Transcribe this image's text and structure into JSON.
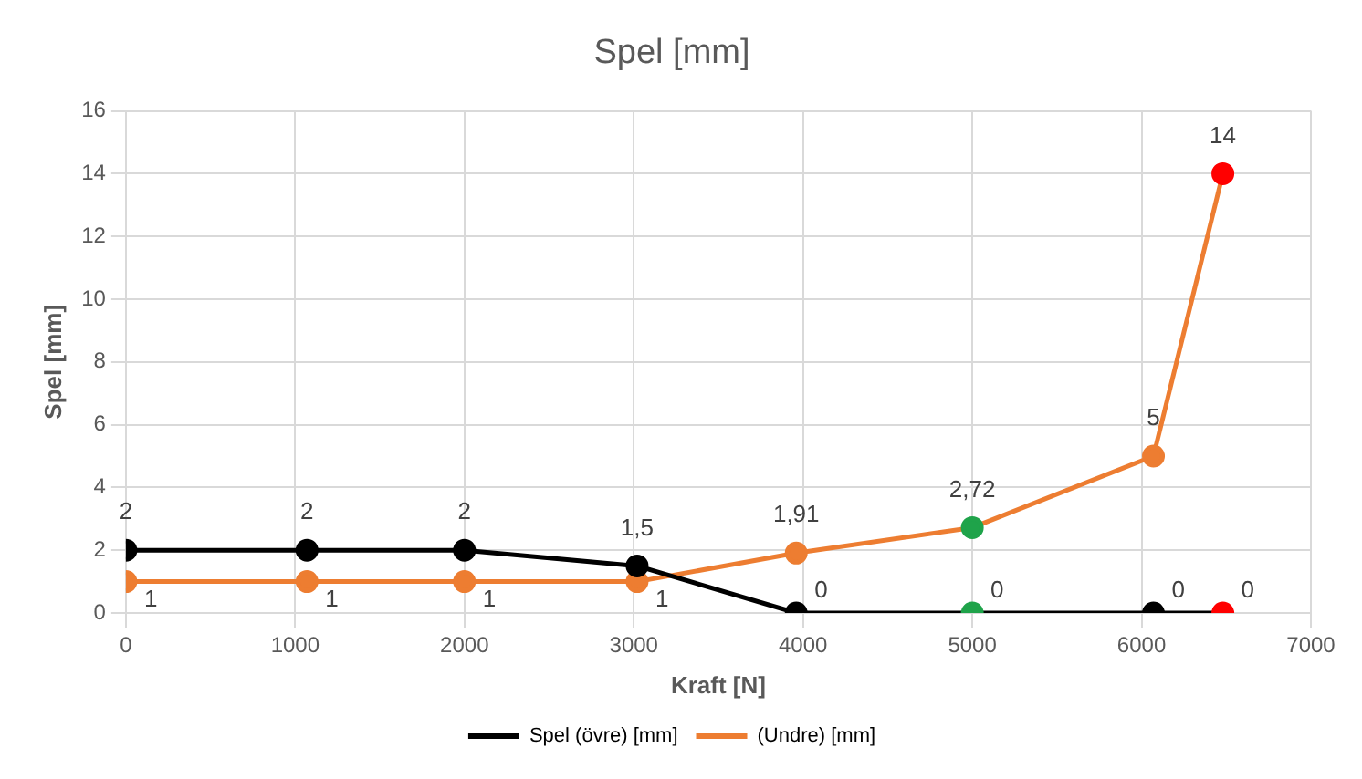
{
  "chart_data": {
    "type": "line",
    "title": "Spel [mm]",
    "xlabel": "Kraft [N]",
    "ylabel": "Spel [mm]",
    "x": [
      0,
      1070,
      2000,
      3020,
      3960,
      5000,
      6070,
      6480
    ],
    "series": [
      {
        "name": "Spel (övre) [mm]",
        "color": "#000000",
        "colors": [
          "#000000",
          "#000000",
          "#000000",
          "#000000",
          "#000000",
          "#1fa34a",
          "#000000",
          "#ff0000"
        ],
        "values": [
          2,
          2,
          2,
          1.5,
          0,
          0,
          0,
          0
        ],
        "value_labels": [
          "2",
          "2",
          "2",
          "1,5",
          "0",
          "0",
          "0",
          "0"
        ]
      },
      {
        "name": "(Undre) [mm]",
        "color": "#ed7d31",
        "colors": [
          "#ed7d31",
          "#ed7d31",
          "#ed7d31",
          "#ed7d31",
          "#ed7d31",
          "#1fa34a",
          "#ed7d31",
          "#ff0000"
        ],
        "values": [
          1,
          1,
          1,
          1,
          1.91,
          2.72,
          5,
          14
        ],
        "value_labels": [
          "1",
          "1",
          "1",
          "1",
          "1,91",
          "2,72",
          "5",
          "14"
        ]
      }
    ],
    "xlim": [
      0,
      7000
    ],
    "xticks": [
      0,
      1000,
      2000,
      3000,
      4000,
      5000,
      6000,
      7000
    ],
    "ylim": [
      0,
      16
    ],
    "yticks": [
      0,
      2,
      4,
      6,
      8,
      10,
      12,
      14,
      16
    ],
    "grid": true,
    "legend": "bottom",
    "marker": "circle",
    "line_style": "solid"
  }
}
